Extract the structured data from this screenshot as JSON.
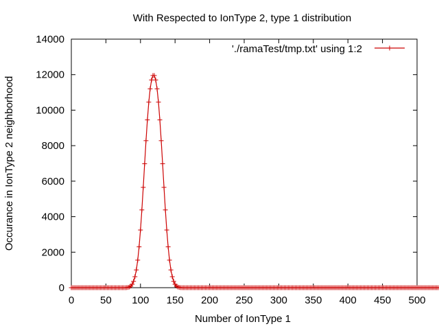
{
  "chart_data": {
    "type": "line",
    "title": "With Respected to IonType 2, type 1 distribution",
    "xlabel": "Number of IonType 1",
    "ylabel": "Occurance in IonType 2 neighborhood",
    "xlim": [
      0,
      500
    ],
    "ylim": [
      0,
      14000
    ],
    "x_ticks": [
      0,
      50,
      100,
      150,
      200,
      250,
      300,
      350,
      400,
      450,
      500
    ],
    "y_ticks": [
      0,
      2000,
      4000,
      6000,
      8000,
      10000,
      12000,
      14000
    ],
    "grid": false,
    "legend_position": "top-right",
    "series": [
      {
        "name": "'./ramaTest/tmp.txt' using 1:2",
        "color": "#cc0000",
        "marker": "plus",
        "x_start": 0,
        "x_step": 2,
        "values": [
          0,
          0,
          0,
          0,
          0,
          0,
          0,
          0,
          0,
          0,
          0,
          0,
          0,
          0,
          0,
          0,
          0,
          0,
          0,
          0,
          0,
          0,
          0,
          0,
          0,
          0,
          0,
          0,
          0,
          0,
          0,
          0,
          0,
          0,
          0,
          0,
          0,
          0,
          0,
          0,
          5,
          15,
          40,
          90,
          190,
          360,
          620,
          1000,
          1550,
          2300,
          3250,
          4380,
          5650,
          6980,
          8280,
          9450,
          10450,
          11200,
          11700,
          11950,
          11950,
          11700,
          11200,
          10450,
          9450,
          8280,
          6980,
          5650,
          4380,
          3250,
          2300,
          1550,
          1000,
          620,
          360,
          190,
          90,
          40,
          15,
          5,
          0,
          0,
          0,
          0,
          0,
          0,
          0,
          0,
          0,
          0,
          0,
          0,
          0,
          0,
          0,
          0,
          0,
          0,
          0,
          0,
          0,
          0,
          0,
          0,
          0,
          0,
          0,
          0,
          0,
          0,
          0,
          0,
          0,
          0,
          0,
          0,
          0,
          0,
          0,
          0,
          0,
          0,
          0,
          0,
          0,
          0,
          0,
          0,
          0,
          0,
          0,
          0,
          0,
          0,
          0,
          0,
          0,
          0,
          0,
          0,
          0,
          0,
          0,
          0,
          0,
          0,
          0,
          0,
          0,
          0,
          0,
          0,
          0,
          0,
          0,
          0,
          0,
          0,
          0,
          0,
          0,
          0,
          0,
          0,
          0,
          0,
          0,
          0,
          0,
          0,
          0,
          0,
          0,
          0,
          0,
          0,
          0,
          0,
          0,
          0,
          0,
          0,
          0,
          0,
          0,
          0,
          0,
          0,
          0,
          0,
          0,
          0,
          0,
          0,
          0,
          0,
          0,
          0,
          0,
          0,
          0,
          0,
          0,
          0,
          0,
          0,
          0,
          0,
          0,
          0,
          0,
          0,
          0,
          0,
          0,
          0,
          0,
          0,
          0,
          0,
          0,
          0,
          0,
          0,
          0,
          0,
          0,
          0,
          0,
          0,
          0,
          0,
          0,
          0,
          0,
          0,
          0,
          0,
          0,
          0,
          0,
          0,
          0,
          0,
          0,
          0,
          0,
          0,
          0,
          0,
          0,
          0,
          0,
          0,
          0,
          0,
          0,
          0,
          0,
          0,
          0,
          0,
          0,
          0,
          0,
          0,
          0,
          0,
          0,
          0,
          0,
          0,
          0,
          0,
          0,
          0,
          0,
          0,
          0,
          0
        ]
      }
    ]
  }
}
